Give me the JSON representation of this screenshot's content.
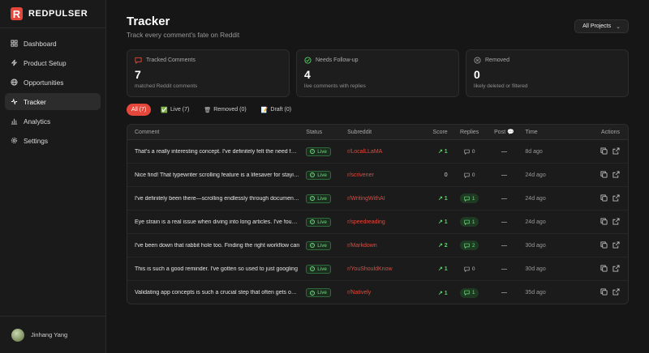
{
  "brand": {
    "logo_letter": "R",
    "name": "REDPULSER"
  },
  "nav": [
    {
      "label": "Dashboard",
      "icon": "dashboard-icon",
      "active": false
    },
    {
      "label": "Product Setup",
      "icon": "bolt-icon",
      "active": false
    },
    {
      "label": "Opportunities",
      "icon": "globe-icon",
      "active": false
    },
    {
      "label": "Tracker",
      "icon": "activity-icon",
      "active": true
    },
    {
      "label": "Analytics",
      "icon": "bar-chart-icon",
      "active": false
    },
    {
      "label": "Settings",
      "icon": "gear-icon",
      "active": false
    }
  ],
  "user": {
    "name": "Jinhang Yang"
  },
  "header": {
    "title": "Tracker",
    "subtitle": "Track every comment's fate on Reddit",
    "project_select": "All Projects"
  },
  "cards": [
    {
      "title": "Tracked Comments",
      "value": "7",
      "desc": "matched Reddit comments",
      "icon": "message-icon",
      "color": "#e5483a"
    },
    {
      "title": "Needs Follow-up",
      "value": "4",
      "desc": "live comments with replies",
      "icon": "check-circle-icon",
      "color": "#5cd36c"
    },
    {
      "title": "Removed",
      "value": "0",
      "desc": "likely deleted or filtered",
      "icon": "x-circle-icon",
      "color": "#9a9a9a"
    }
  ],
  "filters": [
    {
      "label": "All (7)",
      "icon": "",
      "active": true
    },
    {
      "label": "Live (7)",
      "icon": "✅",
      "active": false
    },
    {
      "label": "Removed (0)",
      "icon": "🗑",
      "active": false
    },
    {
      "label": "Draft (0)",
      "icon": "📝",
      "active": false
    }
  ],
  "table": {
    "headers": {
      "comment": "Comment",
      "status": "Status",
      "subreddit": "Subreddit",
      "score": "Score",
      "replies": "Replies",
      "post": "Post 💬",
      "time": "Time",
      "actions": "Actions"
    },
    "rows": [
      {
        "comment": "That's a really interesting concept. I've definitely felt the need for something like that",
        "status": "Live",
        "subreddit": "r/LocalLLaMA",
        "score": "1",
        "score_up": true,
        "replies": "0",
        "post": "—",
        "time": "8d ago"
      },
      {
        "comment": "Nice find! That typewriter scrolling feature is a lifesaver for staying focused",
        "status": "Live",
        "subreddit": "r/scrivener",
        "score": "0",
        "score_up": false,
        "replies": "0",
        "post": "—",
        "time": "24d ago"
      },
      {
        "comment": "I've definitely been there—scrolling endlessly through documents looking for",
        "status": "Live",
        "subreddit": "r/WritingWithAI",
        "score": "1",
        "score_up": true,
        "replies": "1",
        "post": "—",
        "time": "24d ago"
      },
      {
        "comment": "Eye strain is a real issue when diving into long articles. I've found that",
        "status": "Live",
        "subreddit": "r/speedreading",
        "score": "1",
        "score_up": true,
        "replies": "1",
        "post": "—",
        "time": "24d ago"
      },
      {
        "comment": "I've been down that rabbit hole too. Finding the right workflow can",
        "status": "Live",
        "subreddit": "r/Markdown",
        "score": "2",
        "score_up": true,
        "replies": "2",
        "post": "—",
        "time": "30d ago"
      },
      {
        "comment": "This is such a good reminder. I've gotten so used to just googling",
        "status": "Live",
        "subreddit": "r/YouShouldKnow",
        "score": "1",
        "score_up": true,
        "replies": "0",
        "post": "—",
        "time": "30d ago"
      },
      {
        "comment": "Validating app concepts is such a crucial step that often gets overlooked",
        "status": "Live",
        "subreddit": "r/Natively",
        "score": "1",
        "score_up": true,
        "replies": "1",
        "post": "—",
        "time": "35d ago"
      }
    ]
  }
}
